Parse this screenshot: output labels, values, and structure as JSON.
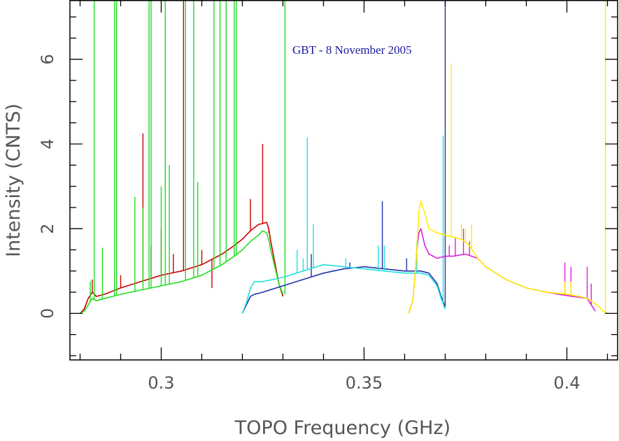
{
  "chart_data": {
    "type": "line",
    "title": "",
    "xlabel": "TOPO Frequency (GHz)",
    "ylabel": "Intensity (CNTS)",
    "xlim": [
      0.2775,
      0.4125
    ],
    "ylim": [
      -1.1,
      7.4
    ],
    "x_ticks": [
      0.3,
      0.35,
      0.4
    ],
    "x_tick_labels": [
      "0.3",
      "0.35",
      "0.4"
    ],
    "x_minor_step": 0.01,
    "y_ticks": [
      0,
      2,
      4,
      6
    ],
    "y_tick_labels": [
      "0",
      "2",
      "4",
      "6"
    ],
    "y_minor_step": 0.5,
    "grid": false,
    "legend": "none",
    "annotation": "GBT - 8 November 2005",
    "series": [
      {
        "color": "#cc0000",
        "x": [
          0.28,
          0.281,
          0.282,
          0.283,
          0.284,
          0.286,
          0.29,
          0.295,
          0.3,
          0.305,
          0.31,
          0.315,
          0.318,
          0.32,
          0.322,
          0.324,
          0.325,
          0.326,
          0.3265,
          0.327,
          0.328,
          0.329,
          0.33
        ],
        "y": [
          0.0,
          0.1,
          0.35,
          0.5,
          0.4,
          0.45,
          0.6,
          0.75,
          0.9,
          1.0,
          1.15,
          1.4,
          1.6,
          1.75,
          1.95,
          2.1,
          2.12,
          2.15,
          2.0,
          1.7,
          1.2,
          0.7,
          0.4
        ],
        "spikes": [
          [
            0.283,
            0.8
          ],
          [
            0.29,
            0.9
          ],
          [
            0.2955,
            4.25
          ],
          [
            0.2975,
            1.6
          ],
          [
            0.3,
            2.0
          ],
          [
            0.303,
            1.4
          ],
          [
            0.3055,
            7.4
          ],
          [
            0.31,
            1.5
          ],
          [
            0.3125,
            0.6
          ],
          [
            0.322,
            2.7
          ],
          [
            0.325,
            4.0
          ],
          [
            0.3265,
            1.9
          ]
        ]
      },
      {
        "color": "#22dd22",
        "x": [
          0.28,
          0.281,
          0.282,
          0.283,
          0.284,
          0.286,
          0.29,
          0.295,
          0.3,
          0.305,
          0.31,
          0.315,
          0.318,
          0.32,
          0.322,
          0.324,
          0.325,
          0.326,
          0.3265,
          0.327,
          0.328,
          0.329,
          0.33
        ],
        "y": [
          0.0,
          0.05,
          0.2,
          0.35,
          0.3,
          0.35,
          0.45,
          0.55,
          0.65,
          0.75,
          0.9,
          1.15,
          1.35,
          1.5,
          1.7,
          1.85,
          1.95,
          1.9,
          1.75,
          1.5,
          1.1,
          0.7,
          0.45
        ],
        "spikes": [
          [
            0.2825,
            0.75
          ],
          [
            0.2835,
            7.4
          ],
          [
            0.2855,
            1.55
          ],
          [
            0.2885,
            7.4
          ],
          [
            0.289,
            7.4
          ],
          [
            0.2935,
            2.75
          ],
          [
            0.2955,
            2.5
          ],
          [
            0.297,
            7.4
          ],
          [
            0.2975,
            7.4
          ],
          [
            0.3,
            3.0
          ],
          [
            0.301,
            7.4
          ],
          [
            0.302,
            3.5
          ],
          [
            0.306,
            7.4
          ],
          [
            0.308,
            7.4
          ],
          [
            0.309,
            3.1
          ],
          [
            0.313,
            7.4
          ],
          [
            0.3145,
            7.4
          ],
          [
            0.316,
            7.4
          ],
          [
            0.318,
            7.4
          ],
          [
            0.3185,
            7.4
          ],
          [
            0.3305,
            7.4
          ]
        ]
      },
      {
        "color": "#2233aa",
        "x": [
          0.32,
          0.321,
          0.322,
          0.323,
          0.325,
          0.33,
          0.335,
          0.34,
          0.345,
          0.35,
          0.355,
          0.36,
          0.362,
          0.364,
          0.366,
          0.368,
          0.369,
          0.37
        ],
        "y": [
          0.0,
          0.2,
          0.4,
          0.45,
          0.5,
          0.65,
          0.8,
          0.95,
          1.05,
          1.1,
          1.05,
          1.0,
          1.0,
          1.0,
          0.95,
          0.7,
          0.4,
          0.15
        ],
        "spikes": [
          [
            0.337,
            1.4
          ],
          [
            0.3465,
            1.2
          ],
          [
            0.3545,
            2.65
          ],
          [
            0.3605,
            1.3
          ],
          [
            0.37,
            7.4
          ]
        ]
      },
      {
        "color": "#22e0e0",
        "x": [
          0.32,
          0.321,
          0.322,
          0.323,
          0.325,
          0.33,
          0.335,
          0.34,
          0.345,
          0.35,
          0.355,
          0.36,
          0.362,
          0.364,
          0.366,
          0.368,
          0.369,
          0.37
        ],
        "y": [
          0.0,
          0.25,
          0.6,
          0.75,
          0.75,
          0.85,
          1.0,
          1.15,
          1.1,
          1.05,
          1.0,
          0.95,
          0.95,
          0.95,
          0.9,
          0.65,
          0.35,
          0.1
        ],
        "spikes": [
          [
            0.3335,
            1.5
          ],
          [
            0.335,
            1.3
          ],
          [
            0.336,
            4.15
          ],
          [
            0.3375,
            2.1
          ],
          [
            0.3455,
            1.3
          ],
          [
            0.3535,
            1.6
          ],
          [
            0.355,
            1.6
          ],
          [
            0.363,
            1.7
          ],
          [
            0.3695,
            4.2
          ]
        ]
      },
      {
        "color": "#dd22dd",
        "x": [
          0.361,
          0.362,
          0.3625,
          0.363,
          0.3635,
          0.364,
          0.365,
          0.366,
          0.368,
          0.37,
          0.372,
          0.375,
          0.378,
          0.38,
          0.385,
          0.39,
          0.395,
          0.4,
          0.403,
          0.405,
          0.406,
          0.407
        ],
        "y": [
          0.0,
          0.3,
          0.8,
          1.5,
          1.9,
          2.0,
          1.6,
          1.4,
          1.3,
          1.35,
          1.35,
          1.4,
          1.3,
          1.1,
          0.8,
          0.6,
          0.5,
          0.42,
          0.38,
          0.35,
          0.2,
          0.05
        ],
        "spikes": [
          [
            0.371,
            1.6
          ],
          [
            0.3725,
            1.8
          ],
          [
            0.3745,
            2.0
          ],
          [
            0.376,
            1.7
          ],
          [
            0.3995,
            1.2
          ],
          [
            0.401,
            1.1
          ],
          [
            0.405,
            1.1
          ],
          [
            0.406,
            0.7
          ]
        ]
      },
      {
        "color": "#ffee00",
        "x": [
          0.361,
          0.362,
          0.3625,
          0.363,
          0.3635,
          0.364,
          0.365,
          0.366,
          0.368,
          0.37,
          0.372,
          0.374,
          0.376,
          0.378,
          0.38,
          0.385,
          0.39,
          0.395,
          0.4,
          0.403,
          0.405,
          0.406,
          0.408,
          0.409,
          0.41
        ],
        "y": [
          0.0,
          0.3,
          0.8,
          1.5,
          2.4,
          2.65,
          2.35,
          2.0,
          1.9,
          1.85,
          1.8,
          1.75,
          1.6,
          1.3,
          1.1,
          0.8,
          0.6,
          0.5,
          0.45,
          0.4,
          0.35,
          0.3,
          0.15,
          0.05,
          0.0
        ],
        "spikes": [
          [
            0.3715,
            5.9
          ],
          [
            0.3725,
            1.8
          ],
          [
            0.374,
            2.1
          ],
          [
            0.375,
            2.0
          ],
          [
            0.3765,
            2.1
          ],
          [
            0.3995,
            0.75
          ],
          [
            0.401,
            0.75
          ],
          [
            0.4095,
            7.4
          ]
        ]
      }
    ]
  }
}
